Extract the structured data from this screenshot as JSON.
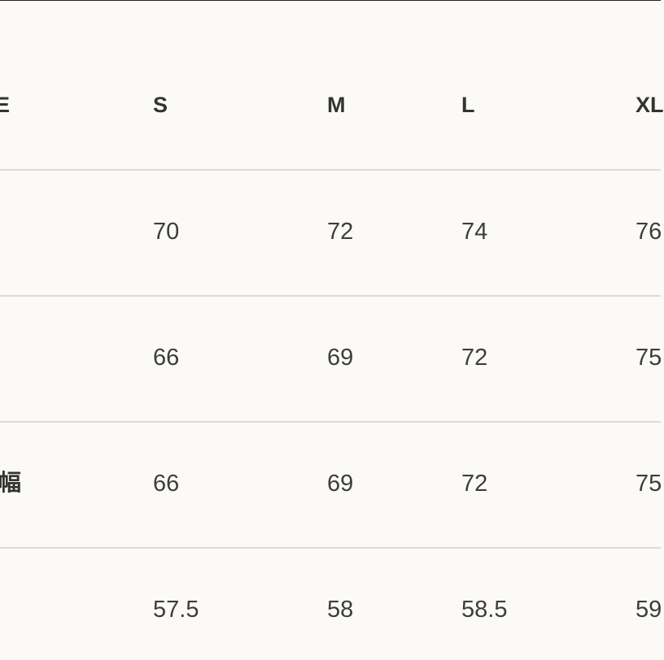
{
  "table": {
    "header": {
      "label": "E",
      "sizes": [
        "S",
        "M",
        "L",
        "XL"
      ]
    },
    "rows": [
      {
        "label": "",
        "values": [
          "70",
          "72",
          "74",
          "76"
        ]
      },
      {
        "label": "",
        "values": [
          "66",
          "69",
          "72",
          "75"
        ]
      },
      {
        "label": "幅",
        "values": [
          "66",
          "69",
          "72",
          "75"
        ]
      },
      {
        "label": "",
        "values": [
          "57.5",
          "58",
          "58.5",
          "59"
        ]
      }
    ]
  },
  "colors": {
    "background": "#fbfaf6",
    "text": "#3a3a3a",
    "divider": "#dcdbd7"
  }
}
